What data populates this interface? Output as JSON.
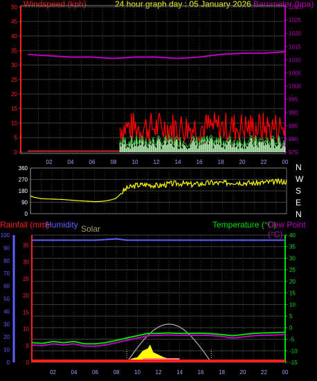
{
  "header": {
    "wind_label": "Windspeed (kph)",
    "title": "24 hour graph day : 05 January 2026",
    "baro_label": "Barometer (hpa)"
  },
  "lower_header": {
    "rain_label": "Rainfall (mm)",
    "humidity_label": "Humidity",
    "solar_label": "Solar",
    "temp_label": "Temperature (°C)",
    "dew_label": "Dew Point (°C)"
  },
  "colors": {
    "wind": "#ff2020",
    "gust": "#ff0000",
    "baro": "#c000c0",
    "direction": "#ffff00",
    "temperature": "#00e000",
    "dewpoint": "#c000c0",
    "humidity": "#6060ff",
    "rain": "#ff2020",
    "solar": "#ffff00",
    "solar_curve": "#aaaaaa",
    "x_ticks": "#a0a0ff"
  },
  "chart_data": [
    {
      "type": "line",
      "name": "wind-barometer",
      "x_tick_labels": [
        "02",
        "04",
        "06",
        "08",
        "10",
        "12",
        "14",
        "16",
        "18",
        "20",
        "22",
        "00"
      ],
      "left_axis": {
        "ticks": [
          0,
          5,
          10,
          15,
          20,
          25,
          30,
          35,
          40,
          45,
          50
        ],
        "ylim": [
          0,
          50
        ]
      },
      "right_axis": {
        "ticks": [
          975,
          980,
          985,
          990,
          995,
          1000,
          1005,
          1010,
          1015,
          1020,
          1025,
          1030
        ],
        "ylim": [
          975,
          1030
        ]
      },
      "barometer": {
        "x": [
          0,
          2,
          4,
          6,
          8,
          10,
          12,
          14,
          16,
          18,
          20,
          22,
          24
        ],
        "y": [
          1012,
          1011.5,
          1011,
          1011,
          1010.5,
          1011,
          1011,
          1010.5,
          1011,
          1012,
          1012.5,
          1012.5,
          1013
        ]
      },
      "wind_start_hour": 8.6,
      "wind_typical_max": [
        3,
        14
      ],
      "wind_typical_avg": [
        1,
        5
      ]
    },
    {
      "type": "line",
      "name": "wind-direction",
      "y_tick_labels": [
        "360",
        "270",
        "180",
        "90",
        "0"
      ],
      "ylim": [
        0,
        360
      ],
      "compass_labels": [
        "N",
        "W",
        "S",
        "E",
        "N"
      ],
      "direction": {
        "x": [
          0,
          0.3,
          1,
          2,
          3,
          4,
          5,
          6,
          6.5,
          7,
          7.5,
          8,
          8.5,
          9,
          10,
          11,
          12,
          13,
          14,
          15,
          16,
          17,
          18,
          19,
          20,
          21,
          22,
          23,
          24
        ],
        "y": [
          140,
          130,
          118,
          115,
          112,
          105,
          100,
          95,
          96,
          100,
          108,
          120,
          160,
          200,
          225,
          230,
          220,
          235,
          240,
          230,
          235,
          245,
          240,
          250,
          245,
          240,
          248,
          250,
          255
        ]
      }
    },
    {
      "type": "line",
      "name": "rain-humidity-temperature",
      "left_axis": {
        "ticks": [
          0,
          5,
          10,
          15,
          20,
          25,
          30,
          35,
          40,
          45,
          50,
          55,
          60,
          65,
          70,
          75,
          80,
          85,
          90,
          95,
          100
        ],
        "ylim": [
          0,
          100
        ]
      },
      "left_axis_labels": [
        "0",
        "10",
        "20",
        "30",
        "40",
        "50",
        "60",
        "70",
        "80",
        "90",
        "100"
      ],
      "right_axis": {
        "ticks": [
          -15,
          -10,
          -5,
          0,
          5,
          10,
          15,
          20,
          25,
          30,
          35,
          40
        ],
        "ylim": [
          -15,
          40
        ]
      },
      "rain_axis_labels": [
        "0",
        "5",
        "10",
        "15",
        "20",
        "25",
        "30",
        "35"
      ],
      "humidity": {
        "x": [
          0,
          2,
          4,
          6,
          8,
          9,
          10,
          12,
          14,
          16,
          18,
          20,
          22,
          24
        ],
        "y": [
          96,
          96,
          96,
          96,
          97,
          96,
          96,
          96,
          96,
          96,
          96,
          96,
          96,
          96
        ]
      },
      "temperature": {
        "x": [
          0,
          1,
          2,
          3,
          4,
          5,
          6,
          7,
          8,
          9,
          10,
          11,
          12,
          13,
          14,
          15,
          16,
          17,
          18,
          19,
          20,
          21,
          22,
          23,
          24
        ],
        "y": [
          -6.5,
          -6.8,
          -6,
          -6.5,
          -6,
          -7,
          -7,
          -6.5,
          -5.5,
          -4.5,
          -3.5,
          -2.5,
          -2.5,
          -2.3,
          -2.5,
          -2.5,
          -2.4,
          -2.6,
          -3,
          -3.5,
          -3,
          -2.5,
          -2.3,
          -2.2,
          -2
        ]
      },
      "dewpoint": {
        "x": [
          0,
          1,
          2,
          3,
          4,
          5,
          6,
          7,
          8,
          9,
          10,
          11,
          12,
          13,
          14,
          15,
          16,
          17,
          18,
          19,
          20,
          21,
          22,
          23,
          24
        ],
        "y": [
          -7.5,
          -7.8,
          -7,
          -7.5,
          -7,
          -8,
          -8,
          -7.5,
          -6.5,
          -5.5,
          -4.5,
          -3.5,
          -3.3,
          -3.2,
          -3.3,
          -3.3,
          -3.3,
          -3.4,
          -3.8,
          -4.5,
          -4,
          -3.5,
          -3.3,
          -3.2,
          -3
        ]
      },
      "solar_theoretical": {
        "start": 9,
        "end": 17,
        "peak_hour": 13,
        "peak_value": 30
      },
      "solar_measured": {
        "x": [
          9,
          9.5,
          10,
          10.5,
          11,
          11.2,
          11.5,
          12,
          12.5,
          13,
          13.5,
          14,
          14.5,
          15
        ],
        "y": [
          1,
          3,
          4,
          9,
          11,
          14,
          8,
          6,
          4,
          3,
          2,
          2,
          1,
          0
        ]
      }
    }
  ]
}
